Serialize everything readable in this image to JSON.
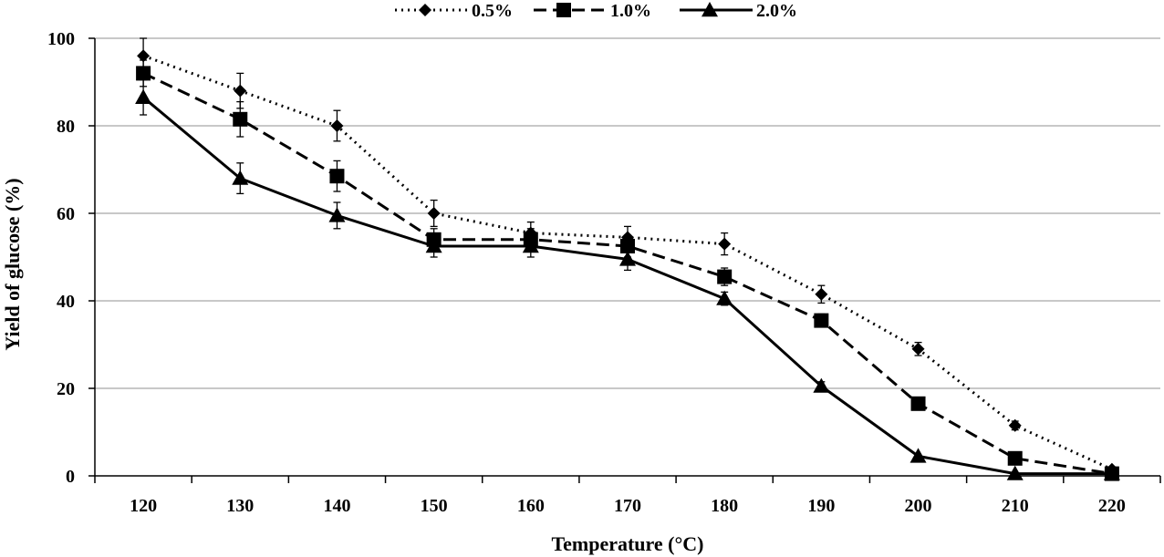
{
  "chart_data": {
    "type": "line",
    "xlabel": "Temperature (°C)",
    "ylabel": "Yield of glucose (%)",
    "x": [
      120,
      130,
      140,
      150,
      160,
      170,
      180,
      190,
      200,
      210,
      220
    ],
    "ylim": [
      0,
      100
    ],
    "yticks": [
      0,
      20,
      40,
      60,
      80,
      100
    ],
    "grid": "horizontal",
    "legend_position": "top",
    "series": [
      {
        "name": "0.5%",
        "marker": "diamond",
        "line_style": "dotted",
        "values": [
          96,
          88,
          80,
          60,
          55.5,
          54.5,
          53,
          41.5,
          29,
          11.5,
          1.5
        ],
        "errors": [
          4,
          4,
          3.5,
          3,
          2.5,
          2.5,
          2.5,
          2,
          1.5,
          1,
          0.5
        ]
      },
      {
        "name": "1.0%",
        "marker": "square",
        "line_style": "dashed",
        "values": [
          92,
          81.5,
          68.5,
          54,
          54,
          52.5,
          45.5,
          35.5,
          16.5,
          4,
          0.5
        ],
        "errors": [
          3,
          4,
          3.5,
          2.5,
          2.5,
          2.5,
          2,
          1.5,
          1,
          0.5,
          0.3
        ]
      },
      {
        "name": "2.0%",
        "marker": "triangle",
        "line_style": "solid",
        "values": [
          86.5,
          68,
          59.5,
          52.5,
          52.5,
          49.5,
          40.5,
          20.5,
          4.5,
          0.5,
          0.5
        ],
        "errors": [
          4,
          3.5,
          3,
          2.5,
          2.5,
          2.5,
          1.5,
          1,
          0.5,
          0.3,
          0.3
        ]
      }
    ]
  }
}
